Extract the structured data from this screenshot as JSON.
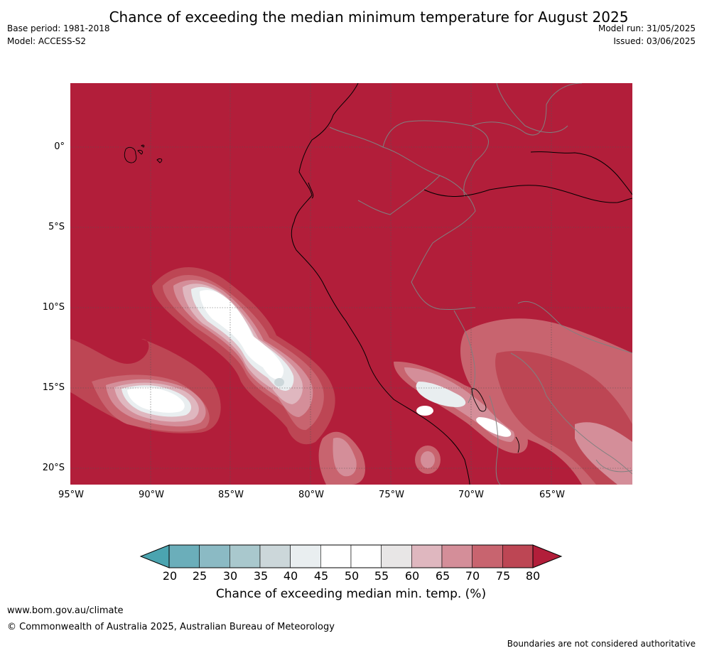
{
  "title": "Chance of exceeding the median minimum temperature for August 2025",
  "meta_left": {
    "base_period": "Base period: 1981-2018",
    "model": "Model: ACCESS-S2"
  },
  "meta_right": {
    "model_run": "Model run: 31/05/2025",
    "issued": "Issued: 03/06/2025"
  },
  "lat_labels": [
    "0°",
    "5°S",
    "10°S",
    "15°S",
    "20°S"
  ],
  "lon_labels": [
    "95°W",
    "90°W",
    "85°W",
    "80°W",
    "75°W",
    "70°W",
    "65°W"
  ],
  "colorbar": {
    "label": "Chance of exceeding median min. temp. (%)",
    "ticks": [
      "20",
      "25",
      "30",
      "35",
      "40",
      "45",
      "50",
      "55",
      "60",
      "65",
      "70",
      "75",
      "80"
    ],
    "colors": [
      "#6baeba",
      "#8bbac4",
      "#a9c8cd",
      "#ccd7da",
      "#e9eef0",
      "#ffffff",
      "#ffffff",
      "#e8e6e6",
      "#dfb7bf",
      "#d48e99",
      "#c8646f",
      "#bd4654",
      "#b21e3a"
    ]
  },
  "map_colors": {
    "dominant": "#b21e3a",
    "land_border": "#000000",
    "country_border": "#808080"
  },
  "footer": {
    "url": "www.bom.gov.au/climate",
    "copyright": "© Commonwealth of Australia 2025, Australian Bureau of Meteorology",
    "note": "Boundaries are not considered authoritative"
  }
}
